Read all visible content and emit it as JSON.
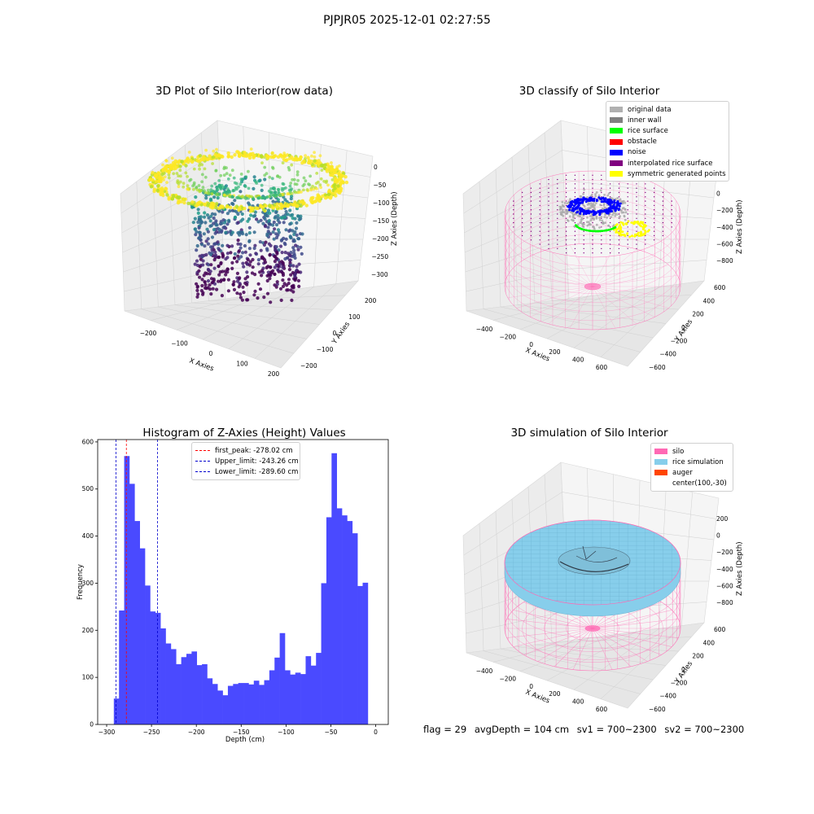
{
  "figure": {
    "suptitle": "PJPJR05 2025-12-01 02:27:55",
    "status": {
      "flag": "flag = 29",
      "avg_depth": "avgDepth = 104 cm",
      "sv1": "sv1 = 700~2300",
      "sv2": "sv2 = 700~2300"
    }
  },
  "colors": {
    "hist_bar": "#4a4aff",
    "first_peak_line": "#ff0000",
    "limit_line": "#0000cc",
    "silo_wire": "#ff69b4",
    "rice": "#87ceeb",
    "pane": "#f2f2f2"
  },
  "chart_data": [
    {
      "type": "scatter",
      "subtype": "3d",
      "title": "3D Plot of Silo Interior(row data)",
      "xlabel": "X Axies",
      "ylabel": "Y Axies",
      "zlabel": "Z Axies (Depth)",
      "x_ticks": [
        "−200",
        "−100",
        "0",
        "100",
        "200"
      ],
      "y_ticks": [
        "−200",
        "−100",
        "0",
        "100",
        "200"
      ],
      "z_ticks": [
        "0",
        "−50",
        "−100",
        "−150",
        "−200",
        "−250",
        "−300"
      ],
      "xlim": [
        -230,
        200
      ],
      "ylim": [
        -230,
        240
      ],
      "zlim": [
        -320,
        20
      ],
      "colormap": "viridis",
      "description_values": {
        "ring_depth_range": [
          -50,
          0
        ],
        "core_depth_range": [
          -300,
          -120
        ]
      }
    },
    {
      "type": "scatter",
      "subtype": "3d",
      "title": "3D classify of Silo Interior",
      "xlabel": "X Axies",
      "ylabel": "Y Axies",
      "zlabel": "Z Axies (Depth)",
      "x_ticks": [
        "−400",
        "−200",
        "0",
        "200",
        "400",
        "600"
      ],
      "y_ticks": [
        "−600",
        "−400",
        "−200",
        "0",
        "200",
        "400",
        "600"
      ],
      "z_ticks": [
        "200",
        "0",
        "−200",
        "−400",
        "−600",
        "−800"
      ],
      "legend": [
        {
          "label": "original data",
          "color": "#b0b0b0"
        },
        {
          "label": "inner wall",
          "color": "#808080"
        },
        {
          "label": "rice surface",
          "color": "#00ff00"
        },
        {
          "label": "obstacle",
          "color": "#ff0000"
        },
        {
          "label": "noise",
          "color": "#0000ff"
        },
        {
          "label": "interpolated rice surface",
          "color": "#800080"
        },
        {
          "label": "symmetric generated points",
          "color": "#ffff00"
        }
      ]
    },
    {
      "type": "bar",
      "subtype": "histogram",
      "title": "Histogram of Z-Axies (Height) Values",
      "xlabel": "Depth (cm)",
      "ylabel": "Frequency",
      "xlim": [
        -310,
        14
      ],
      "ylim": [
        0,
        605
      ],
      "x_ticks": [
        -300,
        -250,
        -200,
        -150,
        -100,
        -50,
        0
      ],
      "x_tick_labels": [
        "−300",
        "−250",
        "−200",
        "−150",
        "−100",
        "−50",
        "0"
      ],
      "y_ticks": [
        0,
        100,
        200,
        300,
        400,
        500,
        600
      ],
      "bin_start": -292,
      "bin_width": 5.78,
      "values": [
        55,
        242,
        570,
        511,
        432,
        374,
        295,
        240,
        237,
        204,
        172,
        160,
        128,
        143,
        150,
        155,
        126,
        128,
        98,
        86,
        72,
        62,
        82,
        86,
        88,
        88,
        85,
        93,
        84,
        94,
        115,
        142,
        194,
        115,
        106,
        110,
        107,
        145,
        125,
        152,
        300,
        440,
        576,
        459,
        444,
        432,
        406,
        294,
        301
      ],
      "vlines": [
        {
          "label": "first_peak: -278.02 cm",
          "x": -278.02,
          "color": "#ff0000"
        },
        {
          "label": "Upper_limit: -243.26 cm",
          "x": -243.26,
          "color": "#0000cc"
        },
        {
          "label": "Lower_limit: -289.60 cm",
          "x": -289.6,
          "color": "#0000cc"
        }
      ]
    },
    {
      "type": "area",
      "subtype": "3d-surface",
      "title": "3D simulation of Silo Interior",
      "xlabel": "X Axies",
      "ylabel": "Y Axies",
      "zlabel": "Z Axies (Depth)",
      "x_ticks": [
        "−400",
        "−200",
        "0",
        "200",
        "400",
        "600"
      ],
      "y_ticks": [
        "−600",
        "−400",
        "−200",
        "0",
        "200",
        "400",
        "600"
      ],
      "z_ticks": [
        "200",
        "0",
        "−200",
        "−400",
        "−600",
        "−800"
      ],
      "legend": [
        {
          "label": "silo",
          "color": "#ff69b4"
        },
        {
          "label": "rice simulation",
          "color": "#87ceeb"
        },
        {
          "label": "auger",
          "color": "#ff4500"
        },
        {
          "label": "center(100,-30)",
          "color": ""
        }
      ]
    }
  ]
}
